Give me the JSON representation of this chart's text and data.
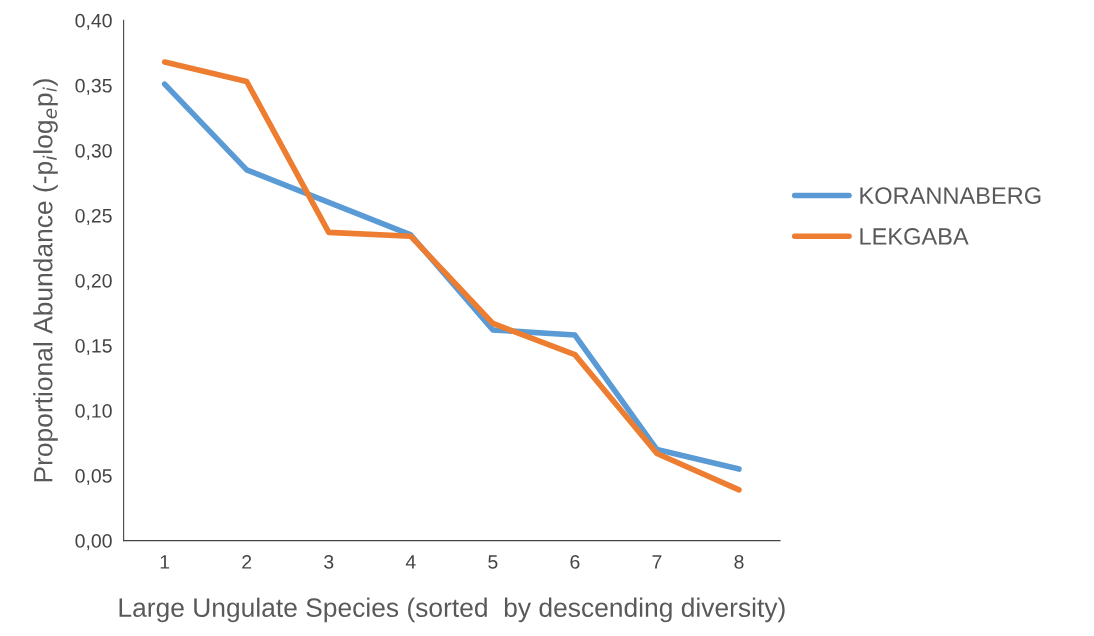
{
  "chart_data": {
    "type": "line",
    "xlabel": "Large Ungulate Species (sorted  by descending diversity)",
    "ylabel": "Proportional Abundance (-p$_{i}$log$_{e}$p$_{i}$)",
    "categories": [
      "1",
      "2",
      "3",
      "4",
      "5",
      "6",
      "7",
      "8"
    ],
    "series": [
      {
        "name": "KORANNABERG",
        "color": "#5b9bd5",
        "values": [
          0.351,
          0.285,
          0.26,
          0.235,
          0.162,
          0.158,
          0.07,
          0.055
        ]
      },
      {
        "name": "LEKGABA",
        "color": "#ed7d31",
        "values": [
          0.368,
          0.353,
          0.237,
          0.234,
          0.167,
          0.143,
          0.067,
          0.039
        ]
      }
    ],
    "ylim": [
      0,
      0.4
    ],
    "yticks": [
      {
        "value": 0,
        "label": "0,00"
      },
      {
        "value": 0.05,
        "label": "0,05"
      },
      {
        "value": 0.1,
        "label": "0,10"
      },
      {
        "value": 0.15,
        "label": "0,15"
      },
      {
        "value": 0.2,
        "label": "0,20"
      },
      {
        "value": 0.25,
        "label": "0,25"
      },
      {
        "value": 0.3,
        "label": "0,30"
      },
      {
        "value": 0.35,
        "label": "0,35"
      },
      {
        "value": 0.4,
        "label": "0,40"
      }
    ],
    "grid": false,
    "legend": "right",
    "marker": "none",
    "line_style": "solid"
  }
}
